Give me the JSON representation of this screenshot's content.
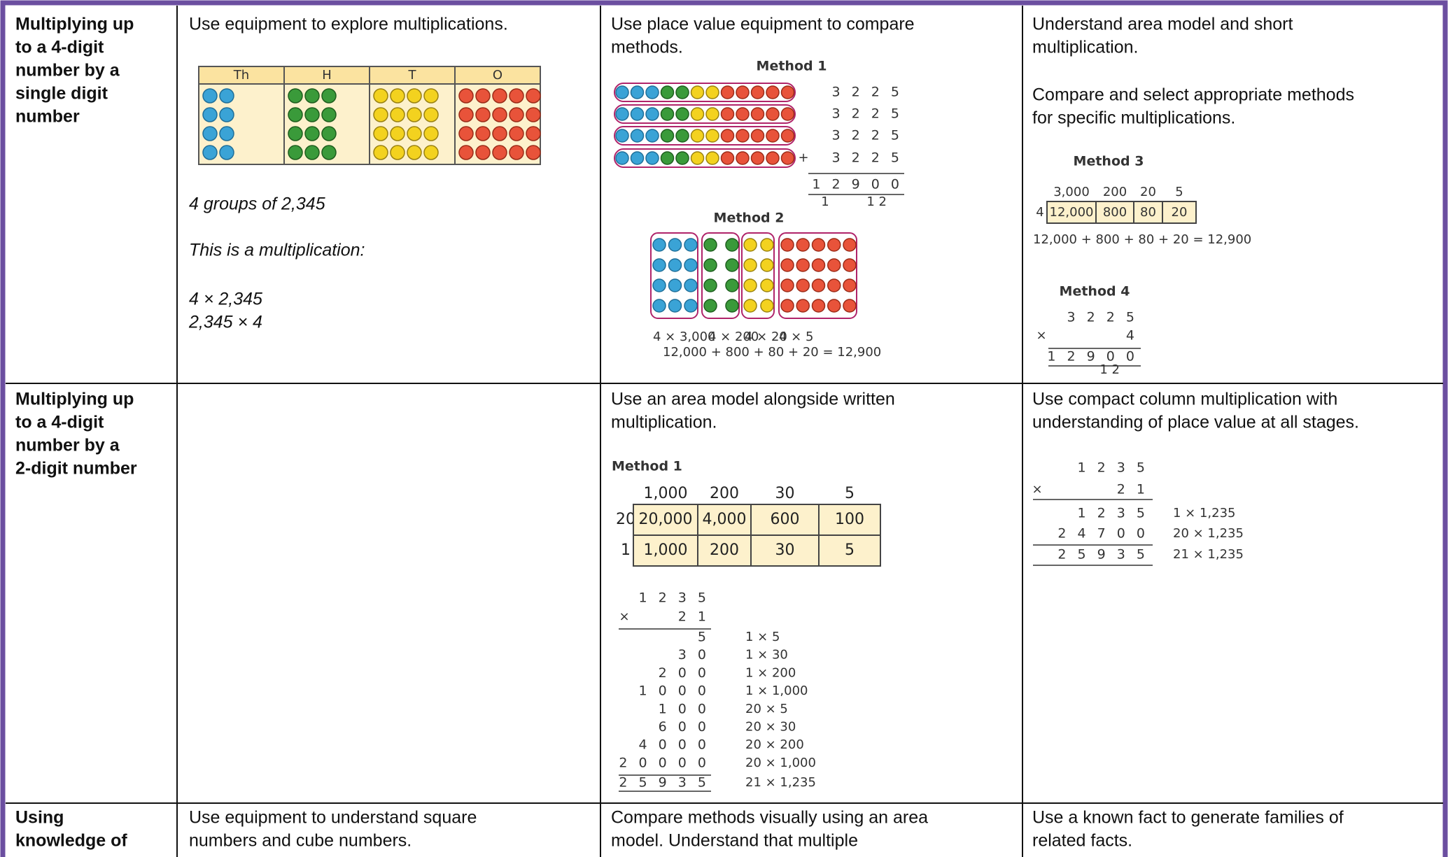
{
  "rows": [
    {
      "heading": [
        "Multiplying up",
        "to a 4-digit",
        "number by a",
        "single digit",
        "number"
      ],
      "cells": [
        {
          "intro": [
            "Use equipment to explore multiplications."
          ],
          "headers": [
            "Th",
            "H",
            "T",
            "O"
          ],
          "notes": [
            "4 groups of 2,345",
            "This is a multiplication:",
            "4 × 2,345",
            "2,345 × 4"
          ]
        },
        {
          "intro": [
            "Use place value equipment to compare",
            "methods."
          ],
          "method1": {
            "title": "Method 1",
            "rows": [
              "3 2 2 5",
              "3 2 2 5",
              "3 2 2 5",
              "3 2 2 5"
            ],
            "sign": "+",
            "result": "1 2 9 0 0",
            "carries": [
              "1",
              "1 2"
            ]
          },
          "method2": {
            "title": "Method 2",
            "labels": [
              "4 × 3,000",
              "4 × 200",
              "4 × 20",
              "4 × 5"
            ],
            "sum": "12,000 + 800 + 80 + 20 = 12,900"
          }
        },
        {
          "intro": [
            "Understand area model and short",
            "multiplication."
          ],
          "intro2": [
            "Compare and select appropriate methods",
            "for specific multiplications."
          ],
          "method3": {
            "title": "Method 3",
            "headers": [
              "3,000",
              "200",
              "20",
              "5"
            ],
            "multiplier": "4",
            "products": [
              "12,000",
              "800",
              "80",
              "20"
            ],
            "sum": "12,000 + 800 + 80 + 20 = 12,900"
          },
          "method4": {
            "title": "Method 4",
            "top": "3 2 2 5",
            "sign": "×",
            "multiplier": "4",
            "result": "1 2 9 0 0",
            "carries": "1 2"
          }
        }
      ]
    },
    {
      "heading": [
        "Multiplying up",
        "to a 4-digit",
        "number by a",
        "2-digit number"
      ],
      "cells": [
        null,
        {
          "intro": [
            "Use an area model alongside written",
            "multiplication."
          ],
          "title": "Method 1",
          "headers": [
            "1,000",
            "200",
            "30",
            "5"
          ],
          "grid": [
            {
              "multiplier": "20",
              "cells": [
                "20,000",
                "4,000",
                "600",
                "100"
              ]
            },
            {
              "multiplier": "1",
              "cells": [
                "1,000",
                "200",
                "30",
                "5"
              ]
            }
          ],
          "top": "1 2 3 5",
          "sign": "×",
          "multiplier": "2 1",
          "partials": [
            [
              "5",
              "1 × 5"
            ],
            [
              "3 0",
              "1 × 30"
            ],
            [
              "2 0 0",
              "1 × 200"
            ],
            [
              "1 0 0 0",
              "1 × 1,000"
            ],
            [
              "1 0 0",
              "20 × 5"
            ],
            [
              "6 0 0",
              "20 × 30"
            ],
            [
              "4 0 0 0",
              "20 × 200"
            ],
            [
              "2 0 0 0 0",
              "20 × 1,000"
            ],
            [
              "2 5 9 3 5",
              "21 × 1,235"
            ]
          ]
        },
        {
          "intro": [
            "Use compact column multiplication with",
            "understanding of place value at all stages."
          ],
          "top": "1 2 3 5",
          "sign": "×",
          "multiplier": "2 1",
          "partials": [
            [
              "1 2 3 5",
              "1 × 1,235"
            ],
            [
              "2 4 7 0 0",
              "20 × 1,235"
            ],
            [
              "2 5 9 3 5",
              "21 × 1,235"
            ]
          ]
        }
      ]
    },
    {
      "heading": [
        "Using",
        "knowledge of"
      ],
      "cells": [
        {
          "intro": [
            "Use equipment to understand square",
            "numbers and cube numbers."
          ]
        },
        {
          "intro": [
            "Compare methods visually using an area",
            "model. Understand that multiple"
          ]
        },
        {
          "intro": [
            "Use a known fact to generate families of",
            "related facts."
          ]
        }
      ]
    }
  ]
}
